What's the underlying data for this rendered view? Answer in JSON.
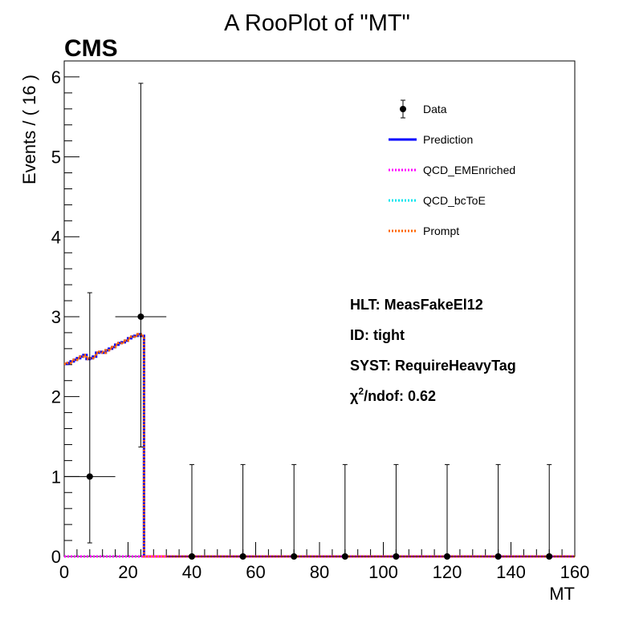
{
  "chart_data": {
    "type": "line",
    "title": "A RooPlot of \"MT\"",
    "experiment_label": "CMS",
    "xlabel": "MT",
    "ylabel": "Events / ( 16 )",
    "xlim": [
      0,
      160
    ],
    "ylim": [
      0,
      6.2
    ],
    "x_ticks": [
      0,
      20,
      40,
      60,
      80,
      100,
      120,
      140,
      160
    ],
    "y_ticks": [
      0,
      1,
      2,
      3,
      4,
      5,
      6
    ],
    "x_tick_labels": [
      "0",
      "20",
      "40",
      "60",
      "80",
      "100",
      "120",
      "140",
      "160"
    ],
    "y_tick_labels": [
      "0",
      "1",
      "2",
      "3",
      "4",
      "5",
      "6"
    ],
    "grid": false,
    "legend_position": "top-right",
    "data_points": {
      "name": "Data",
      "x": [
        8,
        24,
        40,
        56,
        72,
        88,
        104,
        120,
        136,
        152
      ],
      "y": [
        1,
        3,
        0,
        0,
        0,
        0,
        0,
        0,
        0,
        0
      ],
      "x_err": 8,
      "y_err_low": [
        0.83,
        1.63,
        0,
        0,
        0,
        0,
        0,
        0,
        0,
        0
      ],
      "y_err_high": [
        2.3,
        2.92,
        1.15,
        1.15,
        1.15,
        1.15,
        1.15,
        1.15,
        1.15,
        1.15
      ]
    },
    "series": [
      {
        "name": "Prediction",
        "color": "#0000ff",
        "style": "solid",
        "x": [
          0,
          1,
          1,
          2,
          2,
          3,
          3,
          4,
          4,
          5,
          5,
          6,
          6,
          7,
          7,
          8,
          8,
          9,
          9,
          10,
          10,
          11,
          11,
          12,
          12,
          13,
          13,
          14,
          14,
          15,
          15,
          16,
          16,
          17,
          17,
          18,
          18,
          19,
          19,
          20,
          20,
          21,
          21,
          22,
          22,
          23,
          23,
          24,
          24,
          25,
          25,
          160
        ],
        "y": [
          2.41,
          2.41,
          2.42,
          2.42,
          2.44,
          2.44,
          2.46,
          2.46,
          2.48,
          2.48,
          2.5,
          2.5,
          2.52,
          2.52,
          2.47,
          2.47,
          2.48,
          2.48,
          2.5,
          2.5,
          2.55,
          2.55,
          2.56,
          2.56,
          2.55,
          2.55,
          2.58,
          2.58,
          2.6,
          2.6,
          2.62,
          2.62,
          2.65,
          2.65,
          2.67,
          2.67,
          2.68,
          2.68,
          2.7,
          2.7,
          2.73,
          2.73,
          2.75,
          2.75,
          2.76,
          2.76,
          2.78,
          2.78,
          2.76,
          2.76,
          0,
          0
        ]
      },
      {
        "name": "QCD_EMEnriched",
        "color": "#ff00ff",
        "style": "dotted",
        "x": [
          0,
          25,
          25,
          160
        ],
        "y": [
          0,
          0,
          0,
          0
        ]
      },
      {
        "name": "QCD_bcToE",
        "color": "#00e5ee",
        "style": "dotted",
        "x": [
          0,
          25,
          25,
          160
        ],
        "y": [
          0,
          0,
          0,
          0
        ]
      },
      {
        "name": "Prompt",
        "color": "#ff6600",
        "style": "dotted",
        "x": [
          0,
          1,
          1,
          2,
          2,
          3,
          3,
          4,
          4,
          5,
          5,
          6,
          6,
          7,
          7,
          8,
          8,
          9,
          9,
          10,
          10,
          11,
          11,
          12,
          12,
          13,
          13,
          14,
          14,
          15,
          15,
          16,
          16,
          17,
          17,
          18,
          18,
          19,
          19,
          20,
          20,
          21,
          21,
          22,
          22,
          23,
          23,
          24,
          24,
          25,
          25,
          160
        ],
        "y": [
          2.41,
          2.41,
          2.42,
          2.42,
          2.44,
          2.44,
          2.46,
          2.46,
          2.48,
          2.48,
          2.5,
          2.5,
          2.52,
          2.52,
          2.47,
          2.47,
          2.48,
          2.48,
          2.5,
          2.5,
          2.55,
          2.55,
          2.56,
          2.56,
          2.55,
          2.55,
          2.58,
          2.58,
          2.6,
          2.6,
          2.62,
          2.62,
          2.65,
          2.65,
          2.67,
          2.67,
          2.68,
          2.68,
          2.7,
          2.7,
          2.73,
          2.73,
          2.75,
          2.75,
          2.76,
          2.76,
          2.78,
          2.78,
          2.76,
          2.76,
          0,
          0
        ]
      }
    ],
    "legend": [
      {
        "label": "Data",
        "kind": "marker",
        "color": "#000000"
      },
      {
        "label": "Prediction",
        "kind": "solid",
        "color": "#0000ff"
      },
      {
        "label": "QCD_EMEnriched",
        "kind": "dotted",
        "color": "#ff00ff"
      },
      {
        "label": "QCD_bcToE",
        "kind": "dotted",
        "color": "#00e5ee"
      },
      {
        "label": "Prompt",
        "kind": "dotted",
        "color": "#ff6600"
      }
    ],
    "annotations": {
      "hlt": "HLT: MeasFakeEl12",
      "id": "ID: tight",
      "syst": "SYST: RequireHeavyTag",
      "chi2_symbol": "χ",
      "chi2_sup": "2",
      "chi2_rest": "/ndof: 0.62"
    }
  }
}
